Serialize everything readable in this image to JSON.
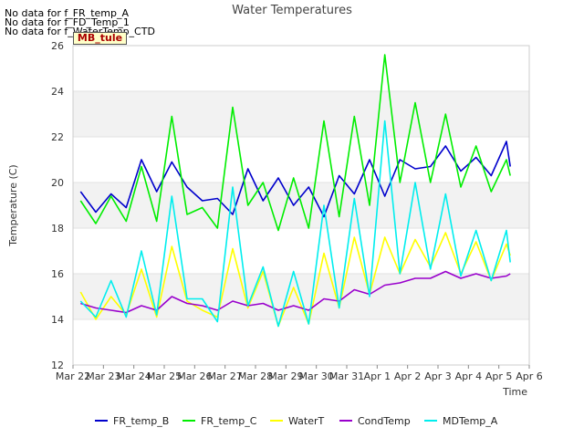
{
  "notes": [
    "No data for f_FR_temp_A",
    "No data for f_FD_Temp_1",
    "No data for f_WaterTemp_CTD"
  ],
  "tag_label": "MB_tule",
  "chart_data": {
    "type": "line",
    "title": "Water Temperatures",
    "xlabel": "Time",
    "ylabel": "Temperature (C)",
    "ylim": [
      12,
      26
    ],
    "yticks": [
      12,
      14,
      16,
      18,
      20,
      22,
      24,
      26
    ],
    "xlim": [
      "2024-03-22",
      "2024-04-06"
    ],
    "x_ticks": [
      "Mar 22",
      "Mar 23",
      "Mar 24",
      "Mar 25",
      "Mar 26",
      "Mar 27",
      "Mar 28",
      "Mar 29",
      "Mar 30",
      "Mar 31",
      "Apr 1",
      "Apr 2",
      "Apr 3",
      "Apr 4",
      "Apr 5",
      "Apr 6"
    ],
    "grid": true,
    "legend_position": "bottom",
    "x_dates": [
      "2024-03-22 06:00",
      "2024-03-22 18:00",
      "2024-03-23 06:00",
      "2024-03-23 18:00",
      "2024-03-24 06:00",
      "2024-03-24 18:00",
      "2024-03-25 06:00",
      "2024-03-25 18:00",
      "2024-03-26 06:00",
      "2024-03-26 18:00",
      "2024-03-27 06:00",
      "2024-03-27 18:00",
      "2024-03-28 06:00",
      "2024-03-28 18:00",
      "2024-03-29 06:00",
      "2024-03-29 18:00",
      "2024-03-30 06:00",
      "2024-03-30 18:00",
      "2024-03-31 06:00",
      "2024-03-31 18:00",
      "2024-04-01 06:00",
      "2024-04-01 18:00",
      "2024-04-02 06:00",
      "2024-04-02 18:00",
      "2024-04-03 06:00",
      "2024-04-03 18:00",
      "2024-04-04 06:00",
      "2024-04-04 18:00",
      "2024-04-05 06:00",
      "2024-04-05 09:00"
    ],
    "series": [
      {
        "name": "FR_temp_B",
        "color": "#0000cc",
        "values": [
          19.6,
          18.7,
          19.5,
          18.9,
          21.0,
          19.6,
          20.9,
          19.8,
          19.2,
          19.3,
          18.6,
          20.6,
          19.2,
          20.2,
          19.0,
          19.8,
          18.5,
          20.3,
          19.5,
          21.0,
          19.4,
          21.0,
          20.6,
          20.7,
          21.6,
          20.5,
          21.1,
          20.3,
          21.8,
          20.7
        ]
      },
      {
        "name": "FR_temp_C",
        "color": "#00ee00",
        "values": [
          19.2,
          18.2,
          19.4,
          18.3,
          20.7,
          18.3,
          22.9,
          18.6,
          18.9,
          18.0,
          23.3,
          19.0,
          20.0,
          17.9,
          20.2,
          18.0,
          22.7,
          18.5,
          22.9,
          19.0,
          25.6,
          20.0,
          23.5,
          20.0,
          23.0,
          19.8,
          21.6,
          19.6,
          21.0,
          20.3
        ]
      },
      {
        "name": "WaterT",
        "color": "#ffff00",
        "values": [
          15.2,
          14.0,
          15.0,
          14.2,
          16.2,
          14.1,
          17.2,
          14.8,
          14.4,
          14.1,
          17.1,
          14.5,
          16.1,
          13.7,
          15.4,
          13.8,
          16.9,
          14.5,
          17.6,
          15.1,
          17.6,
          16.0,
          17.5,
          16.3,
          17.8,
          16.0,
          17.4,
          15.7,
          17.3,
          16.8
        ]
      },
      {
        "name": "CondTemp",
        "color": "#9900cc",
        "values": [
          14.7,
          14.5,
          14.4,
          14.3,
          14.6,
          14.4,
          15.0,
          14.7,
          14.6,
          14.4,
          14.8,
          14.6,
          14.7,
          14.4,
          14.6,
          14.4,
          14.9,
          14.8,
          15.3,
          15.1,
          15.5,
          15.6,
          15.8,
          15.8,
          16.1,
          15.8,
          16.0,
          15.8,
          15.9,
          16.0
        ]
      },
      {
        "name": "MDTemp_A",
        "color": "#00eeee",
        "values": [
          14.8,
          14.1,
          15.7,
          14.1,
          17.0,
          14.2,
          19.4,
          14.9,
          14.9,
          13.9,
          19.8,
          14.6,
          16.3,
          13.7,
          16.1,
          13.8,
          19.0,
          14.5,
          19.3,
          15.0,
          22.7,
          16.0,
          20.0,
          16.2,
          19.5,
          15.9,
          17.9,
          15.7,
          17.9,
          16.5
        ]
      }
    ]
  }
}
